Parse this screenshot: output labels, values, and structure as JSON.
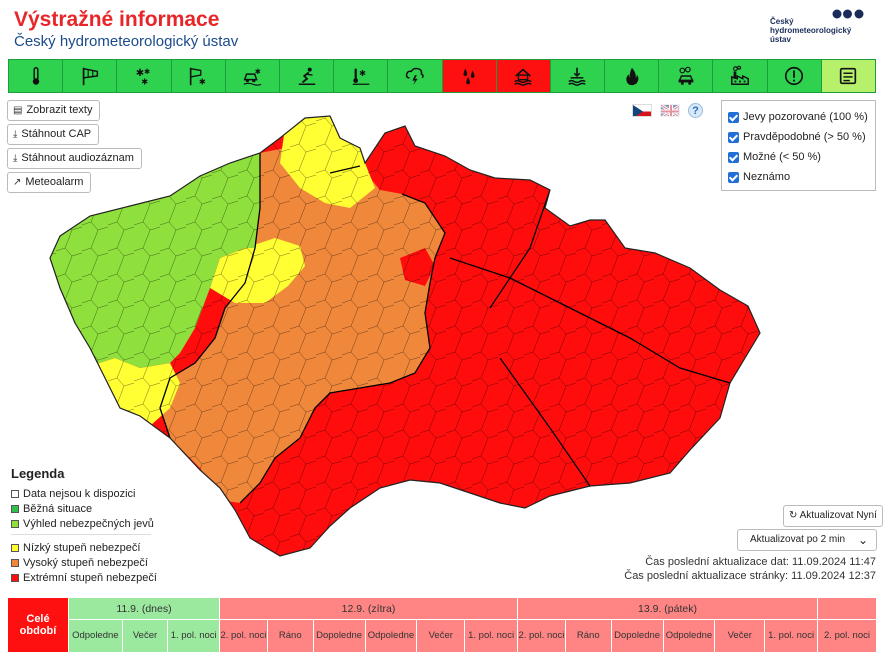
{
  "header": {
    "title": "Výstražné informace",
    "subtitle": "Český hydrometeorologický ústav",
    "logo_text_1": "Český",
    "logo_text_2": "hydrometeorologický",
    "logo_text_3": "ústav"
  },
  "phenomena": [
    {
      "icon": "thermometer-icon",
      "state": "normal"
    },
    {
      "icon": "wind-flag-icon",
      "state": "normal"
    },
    {
      "icon": "snow-icon",
      "state": "normal"
    },
    {
      "icon": "snowstorm-icon",
      "state": "normal"
    },
    {
      "icon": "icy-road-icon",
      "state": "normal"
    },
    {
      "icon": "slippery-icon",
      "state": "normal"
    },
    {
      "icon": "frost-icon",
      "state": "normal"
    },
    {
      "icon": "thunderstorm-icon",
      "state": "normal"
    },
    {
      "icon": "rain-icon",
      "state": "extreme"
    },
    {
      "icon": "flood-house-icon",
      "state": "extreme"
    },
    {
      "icon": "water-level-icon",
      "state": "normal"
    },
    {
      "icon": "fire-icon",
      "state": "normal"
    },
    {
      "icon": "smog-car-icon",
      "state": "normal"
    },
    {
      "icon": "factory-icon",
      "state": "normal"
    },
    {
      "icon": "warning-icon",
      "state": "normal"
    },
    {
      "icon": "text-list-icon",
      "state": "selected"
    }
  ],
  "side_buttons": {
    "texts": "Zobrazit texty",
    "cap": "Stáhnout CAP",
    "audio": "Stáhnout audiozáznam",
    "meteoalarm": "Meteoalarm"
  },
  "help_label": "?",
  "filters": [
    {
      "label": "Jevy pozorované (100 %)",
      "checked": true
    },
    {
      "label": "Pravděpodobné (> 50 %)",
      "checked": true
    },
    {
      "label": "Možné (< 50 %)",
      "checked": true
    },
    {
      "label": "Neznámo",
      "checked": true
    }
  ],
  "legend": {
    "title": "Legenda",
    "items": [
      {
        "label": "Data nejsou k dispozici",
        "color": "#ffffff"
      },
      {
        "label": "Běžná situace",
        "color": "#2fbf4a"
      },
      {
        "label": "Výhled nebezpečných jevů",
        "color": "#8fe03c"
      },
      {
        "label": "Nízký stupeň nebezpečí",
        "color": "#ffff33"
      },
      {
        "label": "Vysoký stupeň nebezpečí",
        "color": "#f0883c"
      },
      {
        "label": "Extrémní stupeň nebezpečí",
        "color": "#ff0d0d"
      }
    ]
  },
  "controls": {
    "refresh": "Aktualizovat Nyní",
    "interval": "Aktualizovat po 2 min",
    "update_data": "Čas poslední aktualizace dat: 11.09.2024 11:47",
    "update_page": "Čas poslední aktualizace stránky: 11.09.2024 12:37"
  },
  "timeline": {
    "all_label": "Celé období",
    "days": [
      {
        "label": "11.9. (dnes)",
        "slots": [
          "Odpoledne",
          "Večer",
          "1. pol. noci"
        ],
        "level": "green"
      },
      {
        "label": "12.9. (zítra)",
        "slots": [
          "2. pol. noci",
          "Ráno",
          "Dopoledne",
          "Odpoledne",
          "Večer",
          "1. pol. noci"
        ],
        "level": "red"
      },
      {
        "label": "13.9. (pátek)",
        "slots": [
          "2. pol. noci",
          "Ráno",
          "Dopoledne",
          "Odpoledne",
          "Večer",
          "1. pol. noci"
        ],
        "level": "red"
      },
      {
        "label": "",
        "slots": [
          "2. pol. noci"
        ],
        "level": "red"
      }
    ]
  },
  "map_colors": {
    "green": "#8fe03c",
    "yellow": "#ffff33",
    "orange": "#f0883c",
    "red": "#ff0d0d"
  }
}
